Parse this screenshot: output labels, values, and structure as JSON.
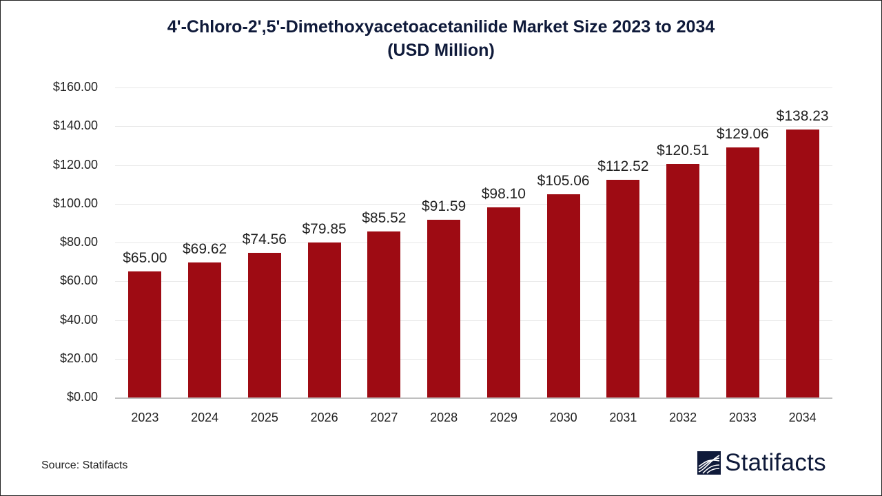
{
  "title_line1": "4'-Chloro-2',5'-Dimethoxyacetoacetanilide Market Size 2023 to 2034",
  "title_line2": "(USD Million)",
  "source": "Source: Statifacts",
  "brand": "Statifacts",
  "colors": {
    "bar": "#9e0b13",
    "title": "#0f1a3a"
  },
  "chart_data": {
    "type": "bar",
    "title": "4'-Chloro-2',5'-Dimethoxyacetoacetanilide Market Size 2023 to 2034 (USD Million)",
    "xlabel": "",
    "ylabel": "",
    "categories": [
      "2023",
      "2024",
      "2025",
      "2026",
      "2027",
      "2028",
      "2029",
      "2030",
      "2031",
      "2032",
      "2033",
      "2034"
    ],
    "values": [
      65.0,
      69.62,
      74.56,
      79.85,
      85.52,
      91.59,
      98.1,
      105.06,
      112.52,
      120.51,
      129.06,
      138.23
    ],
    "value_labels": [
      "$65.00",
      "$69.62",
      "$74.56",
      "$79.85",
      "$85.52",
      "$91.59",
      "$98.10",
      "$105.06",
      "$112.52",
      "$120.51",
      "$129.06",
      "$138.23"
    ],
    "yticks": [
      "$0.00",
      "$20.00",
      "$40.00",
      "$60.00",
      "$80.00",
      "$100.00",
      "$120.00",
      "$140.00",
      "$160.00"
    ],
    "ylim": [
      0,
      160
    ],
    "grid": true,
    "legend": null
  }
}
